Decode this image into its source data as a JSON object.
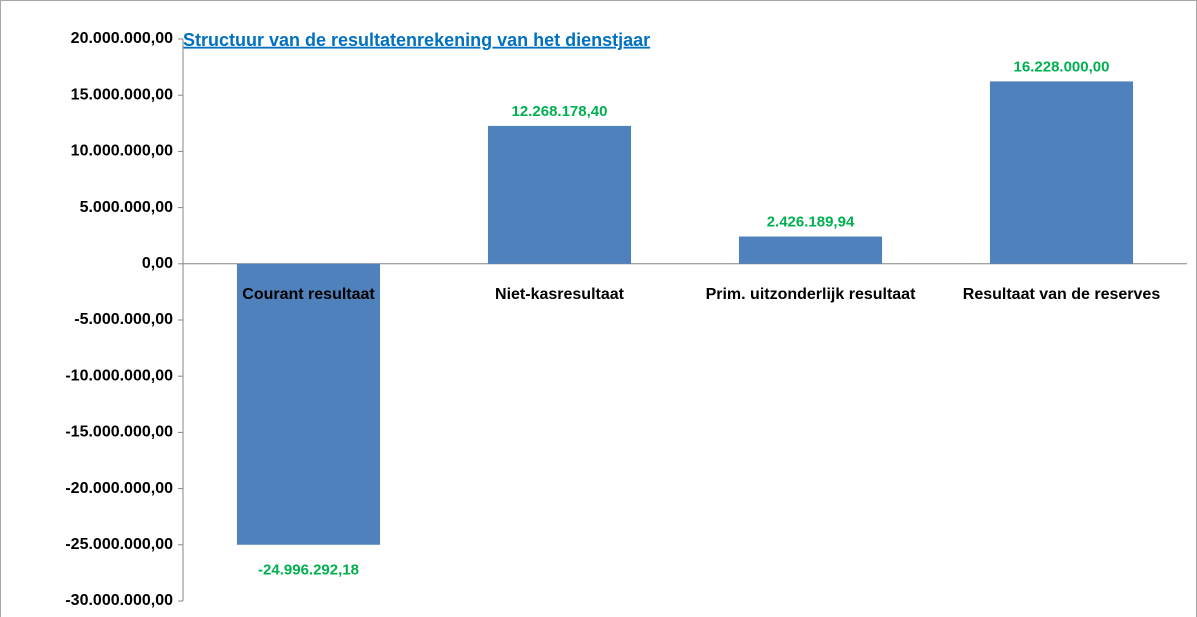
{
  "chart_data": {
    "type": "bar",
    "title": "Structuur van de resultatenrekening van het dienstjaar",
    "categories": [
      "Courant resultaat",
      "Niet-kasresultaat",
      "Prim. uitzonderlijk resultaat",
      "Resultaat van de reserves"
    ],
    "values": [
      -24996292.18,
      12268178.4,
      2426189.94,
      16228000.0
    ],
    "value_labels": [
      "-24.996.292,18",
      "12.268.178,40",
      "2.426.189,94",
      "16.228.000,00"
    ],
    "color": "#4f81bd",
    "label_color": "#00b050",
    "ylim": [
      -30000000,
      20000000
    ],
    "yticks": [
      {
        "value": -30000000,
        "label": "-30.000.000,00"
      },
      {
        "value": -25000000,
        "label": "-25.000.000,00"
      },
      {
        "value": -20000000,
        "label": "-20.000.000,00"
      },
      {
        "value": -15000000,
        "label": "-15.000.000,00"
      },
      {
        "value": -10000000,
        "label": "-10.000.000,00"
      },
      {
        "value": -5000000,
        "label": "-5.000.000,00"
      },
      {
        "value": 0,
        "label": "0,00"
      },
      {
        "value": 5000000,
        "label": "5.000.000,00"
      },
      {
        "value": 10000000,
        "label": "10.000.000,00"
      },
      {
        "value": 15000000,
        "label": "15.000.000,00"
      },
      {
        "value": 20000000,
        "label": "20.000.000,00"
      }
    ],
    "grid": false
  }
}
